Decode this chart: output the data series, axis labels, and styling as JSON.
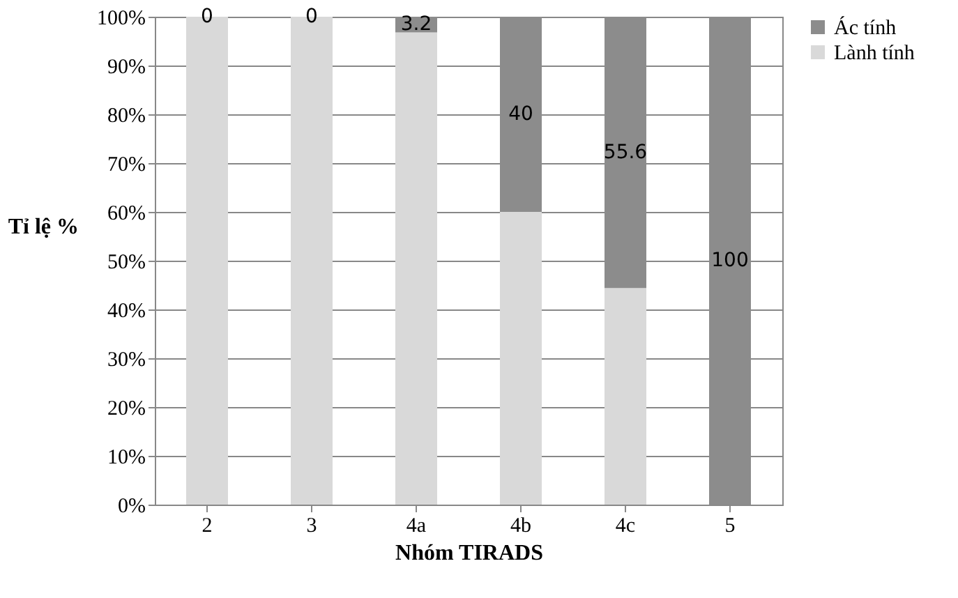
{
  "chart_data": {
    "type": "bar",
    "stacked": true,
    "xlabel": "Nhóm TIRADS",
    "ylabel": "Tỉ lệ %",
    "categories": [
      "2",
      "3",
      "4a",
      "4b",
      "4c",
      "5"
    ],
    "series": [
      {
        "name": "Lành tính",
        "color": "#d9d9d9",
        "values": [
          100,
          100,
          96.8,
          60,
          44.4,
          0
        ]
      },
      {
        "name": "Ác tính",
        "color": "#8c8c8c",
        "values": [
          0,
          0,
          3.2,
          40,
          55.6,
          100
        ],
        "value_labels": [
          "0",
          "0",
          "3.2",
          "40",
          "55.6",
          "100"
        ]
      }
    ],
    "ylim": [
      0,
      100
    ],
    "yticks": [
      {
        "value": 0,
        "label": "0%"
      },
      {
        "value": 10,
        "label": "10%"
      },
      {
        "value": 20,
        "label": "20%"
      },
      {
        "value": 30,
        "label": "30%"
      },
      {
        "value": 40,
        "label": "40%"
      },
      {
        "value": 50,
        "label": "50%"
      },
      {
        "value": 60,
        "label": "60%"
      },
      {
        "value": 70,
        "label": "70%"
      },
      {
        "value": 80,
        "label": "80%"
      },
      {
        "value": 90,
        "label": "90%"
      },
      {
        "value": 100,
        "label": "100%"
      }
    ],
    "grid": "y",
    "legend": "right"
  }
}
